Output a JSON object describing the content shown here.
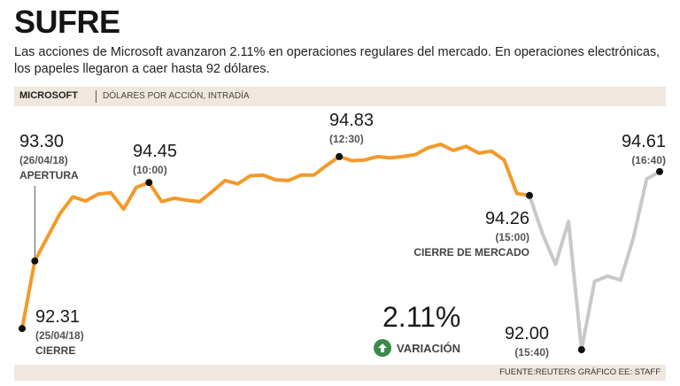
{
  "header": {
    "title": "SUFRE",
    "subtitle": "Las acciones de Microsoft avanzaron 2.11% en operaciones regulares del mercado. En operaciones electrónicas, los papeles llegaron a caer hasta 92 dólares.",
    "company": "MICROSOFT",
    "unit": "DÓLARES POR ACCIÓN, INTRADÍA"
  },
  "variation": {
    "value": "2.11%",
    "label": "VARIACIÓN",
    "icon": "arrow-up-icon"
  },
  "footer": {
    "source": "FUENTE:REUTERS GRÁFICO EE: STAFF"
  },
  "colors": {
    "regular": "#f39a2a",
    "after_hours": "#c9c9c9",
    "band": "#f0e8df",
    "variation_icon": "#3a8a4a"
  },
  "annotations": [
    {
      "value": "92.31",
      "sub": "(25/04/18)",
      "caption": "CIERRE"
    },
    {
      "value": "93.30",
      "sub": "(26/04/18)",
      "caption": "APERTURA"
    },
    {
      "value": "94.45",
      "sub": "(10:00)",
      "caption": ""
    },
    {
      "value": "94.83",
      "sub": "(12:30)",
      "caption": ""
    },
    {
      "value": "94.26",
      "sub": "(15:00)",
      "caption": "CIERRE DE MERCADO"
    },
    {
      "value": "92.00",
      "sub": "(15:40)",
      "caption": ""
    },
    {
      "value": "94.61",
      "sub": "(16:40)",
      "caption": ""
    }
  ],
  "chart_data": {
    "type": "line",
    "title": "SUFRE",
    "ylabel": "Dólares por acción, intradía",
    "ylim": [
      91.6,
      95.5
    ],
    "series": [
      {
        "name": "Operaciones regulares",
        "values": [
          92.31,
          93.3,
          93.65,
          94.0,
          94.24,
          94.18,
          94.28,
          94.3,
          94.06,
          94.38,
          94.45,
          94.17,
          94.22,
          94.19,
          94.17,
          94.32,
          94.48,
          94.43,
          94.55,
          94.56,
          94.49,
          94.48,
          94.56,
          94.56,
          94.7,
          94.83,
          94.77,
          94.78,
          94.83,
          94.81,
          94.83,
          94.86,
          94.96,
          95.01,
          94.92,
          94.98,
          94.88,
          94.91,
          94.78,
          94.29,
          94.26
        ]
      },
      {
        "name": "Operaciones electrónicas",
        "values": [
          94.26,
          93.7,
          93.25,
          93.88,
          92.0,
          93.0,
          93.08,
          93.02,
          93.65,
          94.5,
          94.61
        ]
      }
    ]
  }
}
